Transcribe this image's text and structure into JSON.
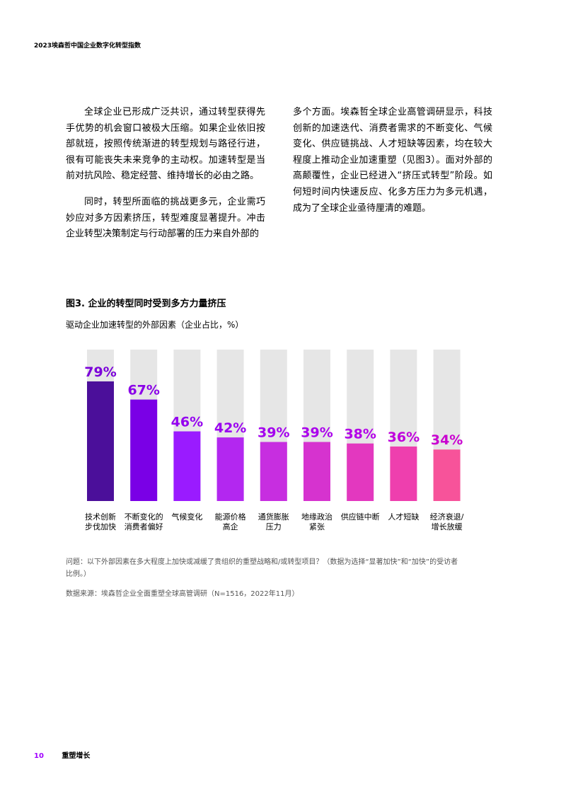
{
  "header": {
    "title": "2023埃森哲中国企业数字化转型指数"
  },
  "body": {
    "left_paragraphs": [
      "全球企业已形成广泛共识，通过转型获得先手优势的机会窗口被极大压缩。如果企业依旧按部就班，按照传统渐进的转型规划与路径行进，很有可能丧失未来竞争的主动权。加速转型是当前对抗风险、稳定经营、维持增长的必由之路。",
      "同时，转型所面临的挑战更多元，企业需巧妙应对多方因素挤压，转型难度显著提升。冲击企业转型决策制定与行动部署的压力来自外部的"
    ],
    "right_paragraphs": [
      "多个方面。埃森哲全球企业高管调研显示，科技创新的加速迭代、消费者需求的不断变化、气候变化、供应链挑战、人才短缺等因素，均在较大程度上推动企业加速重塑（见图3）。面对外部的高颠覆性，企业已经进入“挤压式转型”阶段。如何短时间内快速反应、化多方压力为多元机遇，成为了全球企业亟待厘清的难题。"
    ]
  },
  "figure": {
    "title": "图3. 企业的转型同时受到多方力量挤压",
    "subtitle": "驱动企业加速转型的外部因素（企业占比，%）"
  },
  "chart_data": {
    "type": "bar",
    "title": "图3. 企业的转型同时受到多方力量挤压",
    "subtitle": "驱动企业加速转型的外部因素（企业占比，%）",
    "categories": [
      [
        "技术创新",
        "步伐加快"
      ],
      [
        "不断变化的",
        "消费者偏好"
      ],
      [
        "气候变化"
      ],
      [
        "能源价格",
        "高企"
      ],
      [
        "通货膨胀",
        "压力"
      ],
      [
        "地缘政治",
        "紧张"
      ],
      [
        "供应链中断"
      ],
      [
        "人才短缺"
      ],
      [
        "经济衰退/",
        "增长放缓"
      ]
    ],
    "values": [
      79,
      67,
      46,
      42,
      39,
      39,
      38,
      36,
      34
    ],
    "value_labels": [
      "79%",
      "67%",
      "46%",
      "42%",
      "39%",
      "39%",
      "38%",
      "36%",
      "34%"
    ],
    "ylim": [
      0,
      100
    ],
    "colors": {
      "background_bar": "#e6e6e6",
      "bar_gradient": [
        "#4b0f9a",
        "#7a00e6",
        "#9a1bff",
        "#b327f0",
        "#c72ee0",
        "#d633cf",
        "#e338bf",
        "#ee3fae",
        "#f7539a"
      ],
      "label_gradient": [
        "#7b00d9",
        "#8a00e8",
        "#9400f0",
        "#9a00f0",
        "#a300ee",
        "#aa00ec",
        "#b300e8",
        "#c000dc",
        "#c900d0"
      ]
    }
  },
  "notes": {
    "question": "问题：以下外部因素在多大程度上加快或减缓了贵组织的重塑战略和/或转型项目？（数据为选择“显著加快”和“加快”的受访者比例。）",
    "source": "数据来源：埃森哲企业全面重塑全球高管调研（N=1516，2022年11月）"
  },
  "footer": {
    "page_number": "10",
    "section": "重塑增长"
  }
}
